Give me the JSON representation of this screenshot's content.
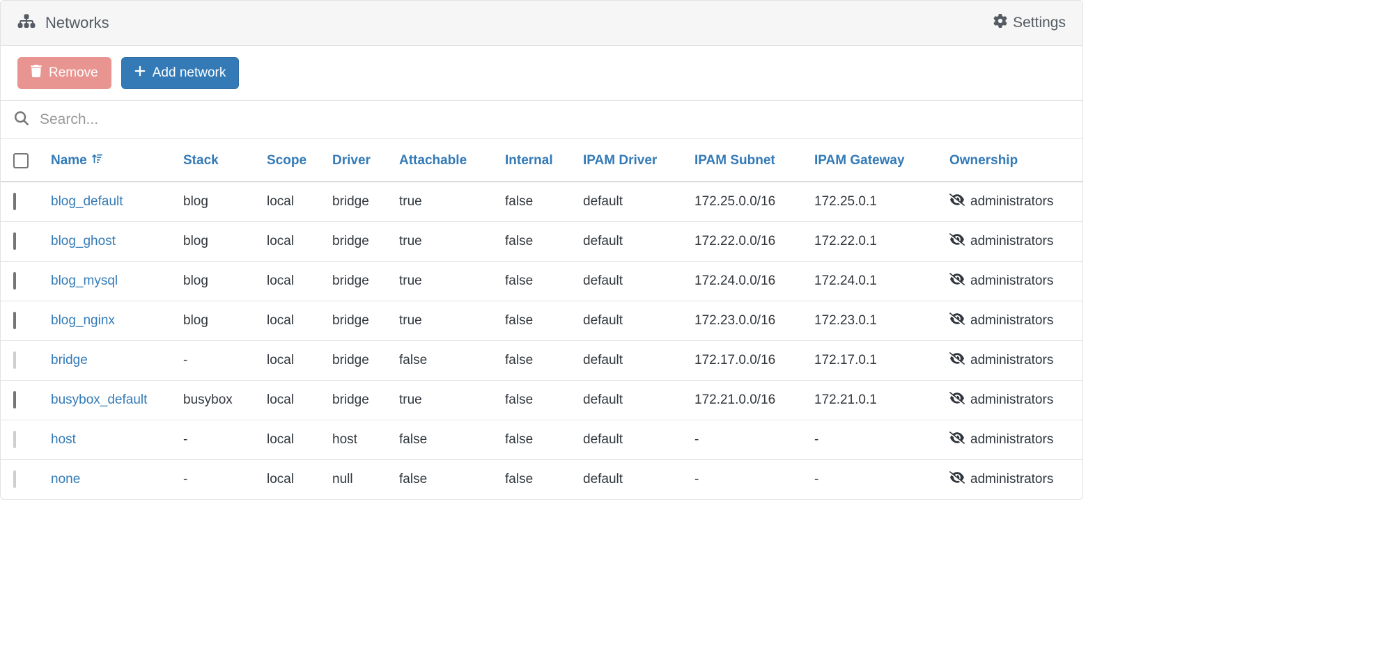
{
  "header": {
    "title": "Networks",
    "settings_label": "Settings"
  },
  "toolbar": {
    "remove_label": "Remove",
    "add_label": "Add network"
  },
  "search": {
    "placeholder": "Search..."
  },
  "columns": {
    "name": "Name",
    "stack": "Stack",
    "scope": "Scope",
    "driver": "Driver",
    "attachable": "Attachable",
    "internal": "Internal",
    "ipam_driver": "IPAM Driver",
    "ipam_subnet": "IPAM Subnet",
    "ipam_gateway": "IPAM Gateway",
    "ownership": "Ownership"
  },
  "rows": [
    {
      "name": "blog_default",
      "stack": "blog",
      "scope": "local",
      "driver": "bridge",
      "attachable": "true",
      "internal": "false",
      "ipam_driver": "default",
      "ipam_subnet": "172.25.0.0/16",
      "ipam_gateway": "172.25.0.1",
      "ownership": "administrators",
      "selectable": true
    },
    {
      "name": "blog_ghost",
      "stack": "blog",
      "scope": "local",
      "driver": "bridge",
      "attachable": "true",
      "internal": "false",
      "ipam_driver": "default",
      "ipam_subnet": "172.22.0.0/16",
      "ipam_gateway": "172.22.0.1",
      "ownership": "administrators",
      "selectable": true
    },
    {
      "name": "blog_mysql",
      "stack": "blog",
      "scope": "local",
      "driver": "bridge",
      "attachable": "true",
      "internal": "false",
      "ipam_driver": "default",
      "ipam_subnet": "172.24.0.0/16",
      "ipam_gateway": "172.24.0.1",
      "ownership": "administrators",
      "selectable": true
    },
    {
      "name": "blog_nginx",
      "stack": "blog",
      "scope": "local",
      "driver": "bridge",
      "attachable": "true",
      "internal": "false",
      "ipam_driver": "default",
      "ipam_subnet": "172.23.0.0/16",
      "ipam_gateway": "172.23.0.1",
      "ownership": "administrators",
      "selectable": true
    },
    {
      "name": "bridge",
      "stack": "-",
      "scope": "local",
      "driver": "bridge",
      "attachable": "false",
      "internal": "false",
      "ipam_driver": "default",
      "ipam_subnet": "172.17.0.0/16",
      "ipam_gateway": "172.17.0.1",
      "ownership": "administrators",
      "selectable": false
    },
    {
      "name": "busybox_default",
      "stack": "busybox",
      "scope": "local",
      "driver": "bridge",
      "attachable": "true",
      "internal": "false",
      "ipam_driver": "default",
      "ipam_subnet": "172.21.0.0/16",
      "ipam_gateway": "172.21.0.1",
      "ownership": "administrators",
      "selectable": true
    },
    {
      "name": "host",
      "stack": "-",
      "scope": "local",
      "driver": "host",
      "attachable": "false",
      "internal": "false",
      "ipam_driver": "default",
      "ipam_subnet": "-",
      "ipam_gateway": "-",
      "ownership": "administrators",
      "selectable": false
    },
    {
      "name": "none",
      "stack": "-",
      "scope": "local",
      "driver": "null",
      "attachable": "false",
      "internal": "false",
      "ipam_driver": "default",
      "ipam_subnet": "-",
      "ipam_gateway": "-",
      "ownership": "administrators",
      "selectable": false
    }
  ],
  "colors": {
    "link": "#337ab7",
    "danger": "#e89490",
    "primary": "#337ab7",
    "text": "#30363c"
  }
}
